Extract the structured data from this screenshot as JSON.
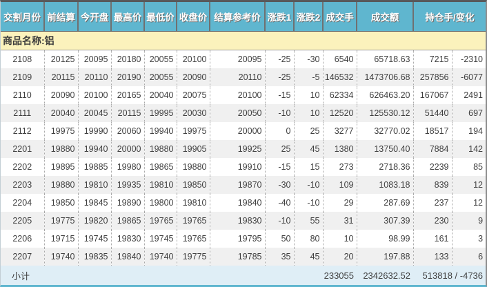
{
  "table": {
    "headers": [
      {
        "id": "month",
        "label": "交割月份"
      },
      {
        "id": "prev_settle",
        "label": "前结算"
      },
      {
        "id": "open",
        "label": "今开盘"
      },
      {
        "id": "high",
        "label": "最高价"
      },
      {
        "id": "low",
        "label": "最低价"
      },
      {
        "id": "close",
        "label": "收盘价"
      },
      {
        "id": "settle_ref",
        "label": "结算参考价"
      },
      {
        "id": "change1",
        "label": "涨跌1"
      },
      {
        "id": "change2",
        "label": "涨跌2"
      },
      {
        "id": "volume",
        "label": "成交手"
      },
      {
        "id": "turnover",
        "label": "成交额"
      },
      {
        "id": "oi_and_change",
        "label": "持仓手/变化"
      }
    ],
    "product_label": "商品名称:铝",
    "rows": [
      [
        "2108",
        "20125",
        "20095",
        "20180",
        "20055",
        "20100",
        "20095",
        "-25",
        "-30",
        "6540",
        "65718.63",
        "7215",
        "-2310"
      ],
      [
        "2109",
        "20115",
        "20110",
        "20190",
        "20055",
        "20090",
        "20110",
        "-25",
        "-5",
        "146532",
        "1473706.68",
        "257856",
        "-6077"
      ],
      [
        "2110",
        "20090",
        "20100",
        "20165",
        "20040",
        "20075",
        "20100",
        "-15",
        "10",
        "62334",
        "626463.20",
        "167067",
        "2491"
      ],
      [
        "2111",
        "20040",
        "20045",
        "20115",
        "19995",
        "20030",
        "20050",
        "-10",
        "10",
        "12520",
        "125530.12",
        "51440",
        "697"
      ],
      [
        "2112",
        "19975",
        "19990",
        "20060",
        "19940",
        "19975",
        "20000",
        "0",
        "25",
        "3277",
        "32770.02",
        "18517",
        "194"
      ],
      [
        "2201",
        "19880",
        "19940",
        "20000",
        "19880",
        "19905",
        "19925",
        "25",
        "45",
        "1380",
        "13750.40",
        "7884",
        "142"
      ],
      [
        "2202",
        "19895",
        "19885",
        "19980",
        "19865",
        "19880",
        "19910",
        "-15",
        "15",
        "273",
        "2718.36",
        "2239",
        "85"
      ],
      [
        "2203",
        "19880",
        "19810",
        "19935",
        "19810",
        "19850",
        "19870",
        "-30",
        "-10",
        "109",
        "1083.18",
        "839",
        "12"
      ],
      [
        "2204",
        "19850",
        "19845",
        "19890",
        "19800",
        "19810",
        "19840",
        "-40",
        "-10",
        "29",
        "287.69",
        "237",
        "12"
      ],
      [
        "2205",
        "19775",
        "19820",
        "19865",
        "19765",
        "19765",
        "19830",
        "-10",
        "55",
        "31",
        "307.39",
        "230",
        "9"
      ],
      [
        "2206",
        "19715",
        "19745",
        "19830",
        "19745",
        "19765",
        "19795",
        "50",
        "80",
        "10",
        "98.99",
        "161",
        "3"
      ],
      [
        "2207",
        "19740",
        "19835",
        "19840",
        "19740",
        "19775",
        "19785",
        "35",
        "45",
        "20",
        "197.88",
        "133",
        "6"
      ]
    ],
    "subtotal": {
      "label": "小计",
      "volume": "233055",
      "turnover": "2342632.52",
      "open_interest_change": "513818 / -4736"
    }
  },
  "colors": {
    "header_bg": "#5fb6cf",
    "header_text": "#ffffff",
    "product_row_bg": "#fbf2bc",
    "row_bg": "#ffffff",
    "row_alt_bg": "#f0f0f0",
    "subtotal_bg": "#dfeef6",
    "top_border": "#58595b",
    "bottom_border": "#5fb6cf",
    "text": "#404040"
  }
}
